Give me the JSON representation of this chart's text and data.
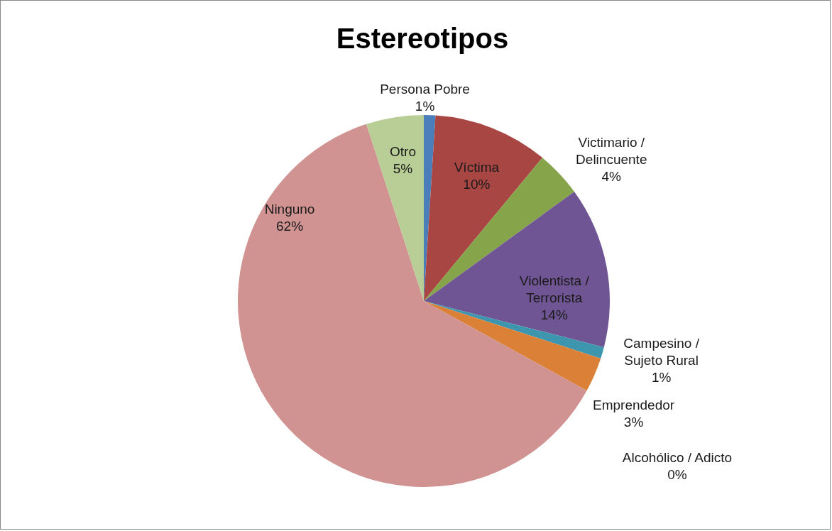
{
  "chart_data": {
    "type": "pie",
    "title": "Estereotipos",
    "categories": [
      "Persona Pobre",
      "Víctima",
      "Victimario / Delincuente",
      "Violentista / Terrorista",
      "Campesino / Sujeto Rural",
      "Emprendedor",
      "Alcohólico / Adicto",
      "Ninguno",
      "Otro"
    ],
    "values": [
      1,
      10,
      4,
      14,
      1,
      3,
      0,
      62,
      5
    ],
    "value_labels": [
      "1%",
      "10%",
      "4%",
      "14%",
      "1%",
      "3%",
      "0%",
      "62%",
      "5%"
    ],
    "colors": [
      "#4a7ebb",
      "#a84643",
      "#86a44a",
      "#6f5593",
      "#3d96ae",
      "#da8137",
      "#a5a5a5",
      "#d09391",
      "#b9cd96"
    ],
    "legend": false
  }
}
